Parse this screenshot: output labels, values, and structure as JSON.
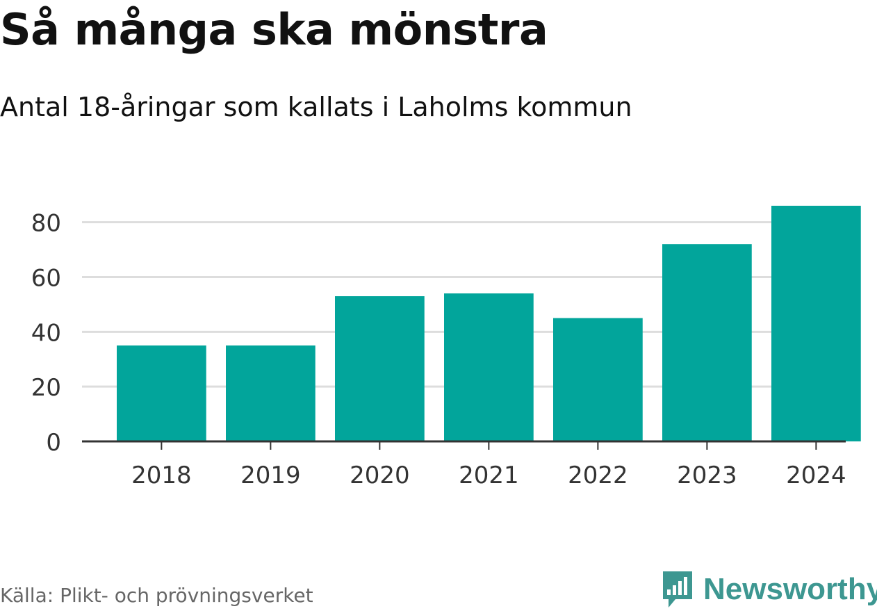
{
  "title": "Så många ska mönstra",
  "subtitle": "Antal 18-åringar som kallats i Laholms kommun",
  "source": "Källa: Plikt- och prövningsverket",
  "brand": "Newsworthy",
  "colors": {
    "bar": "#02a59b",
    "grid": "#dddddd",
    "axis": "#333333",
    "brand": "#3d9791"
  },
  "chart_data": {
    "type": "bar",
    "title": "Så många ska mönstra",
    "subtitle": "Antal 18-åringar som kallats i Laholms kommun",
    "xlabel": "",
    "ylabel": "",
    "categories": [
      "2018",
      "2019",
      "2020",
      "2021",
      "2022",
      "2023",
      "2024"
    ],
    "values": [
      35,
      35,
      53,
      54,
      45,
      72,
      86
    ],
    "yticks": [
      0,
      20,
      40,
      60,
      80
    ],
    "ylim": [
      0,
      86
    ],
    "grid": true
  }
}
